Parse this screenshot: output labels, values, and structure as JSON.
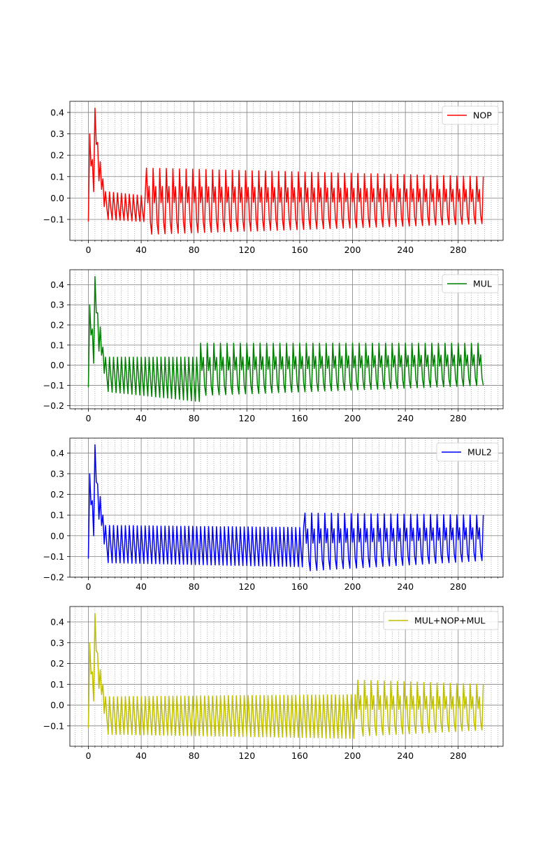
{
  "chart_data": [
    {
      "type": "line",
      "legend_location": "upper right",
      "grid": true,
      "minor_grid": true,
      "xlim": [
        -14,
        314
      ],
      "ylim": [
        -0.198,
        0.452
      ],
      "xticks": [
        0,
        40,
        80,
        120,
        160,
        200,
        240,
        280
      ],
      "yticks": [
        -0.1,
        0.0,
        0.1,
        0.2,
        0.3,
        0.4
      ],
      "x_range": [
        0,
        299
      ],
      "series": [
        {
          "name": "NOP",
          "color": "#ff0000",
          "segments": [
            {
              "x_start": 0,
              "x_end": 12,
              "points": [
                [
                  0,
                  -0.11
                ],
                [
                  1,
                  0.3
                ],
                [
                  2,
                  0.15
                ],
                [
                  3,
                  0.18
                ],
                [
                  4,
                  0.03
                ],
                [
                  5,
                  0.42
                ],
                [
                  6,
                  0.25
                ],
                [
                  7,
                  0.26
                ],
                [
                  8,
                  0.08
                ],
                [
                  9,
                  0.17
                ],
                [
                  10,
                  0.04
                ],
                [
                  11,
                  0.09
                ],
                [
                  12,
                  -0.04
                ]
              ]
            },
            {
              "x_start": 13,
              "x_end": 43,
              "period": 3,
              "peak": [
                0.03,
                0.01
              ],
              "trough": [
                -0.1,
                -0.11
              ]
            },
            {
              "x_start": 44,
              "x_end": 299,
              "period": 5,
              "peak": [
                0.14,
                0.1
              ],
              "trough": [
                -0.17,
                -0.12
              ]
            }
          ]
        }
      ]
    },
    {
      "type": "line",
      "legend_location": "upper right",
      "grid": true,
      "minor_grid": true,
      "xlim": [
        -14,
        314
      ],
      "ylim": [
        -0.216,
        0.474
      ],
      "xticks": [
        0,
        40,
        80,
        120,
        160,
        200,
        240,
        280
      ],
      "yticks": [
        -0.2,
        -0.1,
        0.0,
        0.1,
        0.2,
        0.3,
        0.4
      ],
      "x_range": [
        0,
        299
      ],
      "series": [
        {
          "name": "MUL",
          "color": "#008000",
          "segments": [
            {
              "x_start": 0,
              "x_end": 12,
              "points": [
                [
                  0,
                  -0.11
                ],
                [
                  1,
                  0.3
                ],
                [
                  2,
                  0.15
                ],
                [
                  3,
                  0.18
                ],
                [
                  4,
                  0.01
                ],
                [
                  5,
                  0.44
                ],
                [
                  6,
                  0.26
                ],
                [
                  7,
                  0.26
                ],
                [
                  8,
                  0.07
                ],
                [
                  9,
                  0.19
                ],
                [
                  10,
                  0.05
                ],
                [
                  11,
                  0.09
                ],
                [
                  12,
                  -0.04
                ]
              ]
            },
            {
              "x_start": 13,
              "x_end": 84,
              "period": 3,
              "peak": [
                0.04,
                0.04
              ],
              "trough": [
                -0.13,
                -0.18
              ]
            },
            {
              "x_start": 85,
              "x_end": 299,
              "period": 5,
              "peak": [
                0.11,
                0.11
              ],
              "trough": [
                -0.15,
                -0.1
              ]
            }
          ]
        }
      ]
    },
    {
      "type": "line",
      "legend_location": "upper right",
      "grid": true,
      "minor_grid": true,
      "xlim": [
        -14,
        314
      ],
      "ylim": [
        -0.2,
        0.472
      ],
      "xticks": [
        0,
        40,
        80,
        120,
        160,
        200,
        240,
        280
      ],
      "yticks": [
        -0.2,
        -0.1,
        0.0,
        0.1,
        0.2,
        0.3,
        0.4
      ],
      "x_range": [
        0,
        299
      ],
      "series": [
        {
          "name": "MUL2",
          "color": "#0000ff",
          "segments": [
            {
              "x_start": 0,
              "x_end": 12,
              "points": [
                [
                  0,
                  -0.11
                ],
                [
                  1,
                  0.3
                ],
                [
                  2,
                  0.15
                ],
                [
                  3,
                  0.17
                ],
                [
                  4,
                  0.0
                ],
                [
                  5,
                  0.44
                ],
                [
                  6,
                  0.26
                ],
                [
                  7,
                  0.25
                ],
                [
                  8,
                  0.08
                ],
                [
                  9,
                  0.19
                ],
                [
                  10,
                  0.05
                ],
                [
                  11,
                  0.1
                ],
                [
                  12,
                  -0.04
                ]
              ]
            },
            {
              "x_start": 13,
              "x_end": 163,
              "period": 3,
              "peak": [
                0.05,
                0.04
              ],
              "trough": [
                -0.13,
                -0.15
              ]
            },
            {
              "x_start": 164,
              "x_end": 299,
              "period": 5,
              "peak": [
                0.11,
                0.1
              ],
              "trough": [
                -0.17,
                -0.12
              ]
            }
          ]
        }
      ]
    },
    {
      "type": "line",
      "legend_location": "upper right",
      "grid": true,
      "minor_grid": true,
      "xlim": [
        -14,
        314
      ],
      "ylim": [
        -0.198,
        0.474
      ],
      "xticks": [
        0,
        40,
        80,
        120,
        160,
        200,
        240,
        280
      ],
      "yticks": [
        -0.1,
        0.0,
        0.1,
        0.2,
        0.3,
        0.4
      ],
      "x_range": [
        0,
        299
      ],
      "series": [
        {
          "name": "MUL+NOP+MUL",
          "color": "#bfbf00",
          "segments": [
            {
              "x_start": 0,
              "x_end": 12,
              "points": [
                [
                  0,
                  -0.11
                ],
                [
                  1,
                  0.3
                ],
                [
                  2,
                  0.15
                ],
                [
                  3,
                  0.16
                ],
                [
                  4,
                  0.02
                ],
                [
                  5,
                  0.44
                ],
                [
                  6,
                  0.26
                ],
                [
                  7,
                  0.25
                ],
                [
                  8,
                  0.08
                ],
                [
                  9,
                  0.17
                ],
                [
                  10,
                  0.05
                ],
                [
                  11,
                  0.1
                ],
                [
                  12,
                  -0.04
                ]
              ]
            },
            {
              "x_start": 13,
              "x_end": 203,
              "period": 3,
              "peak": [
                0.04,
                0.05
              ],
              "trough": [
                -0.14,
                -0.16
              ]
            },
            {
              "x_start": 204,
              "x_end": 299,
              "period": 5,
              "peak": [
                0.12,
                0.1
              ],
              "trough": [
                -0.15,
                -0.12
              ]
            }
          ]
        }
      ]
    }
  ]
}
